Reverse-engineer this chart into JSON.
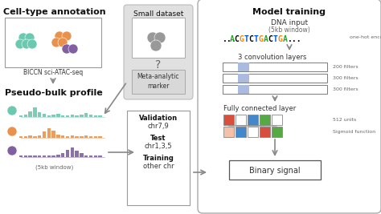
{
  "bg_color": "#f5f5f5",
  "cell_teal": "#6dc8b0",
  "cell_orange": "#e8924e",
  "cell_purple": "#8060a0",
  "cell_gray": "#999999",
  "bar_teal": "#6dc8b0",
  "bar_orange": "#e8924e",
  "bar_purple": "#8060a0",
  "dna_chars": [
    "...",
    "A",
    "C",
    "G",
    "T",
    "C",
    "T",
    "G",
    "A",
    "C",
    "T",
    "G",
    "A",
    "..."
  ],
  "dna_colors": [
    "#000000",
    "#22aa22",
    "#000000",
    "#ff8800",
    "#0055cc",
    "#000000",
    "#0055cc",
    "#ff8800",
    "#22aa22",
    "#000000",
    "#0055cc",
    "#ff8800",
    "#22aa22",
    "#000000"
  ],
  "filter_labels": [
    "200 filters",
    "300 filters",
    "300 filters"
  ],
  "fc_colors_r1": [
    "#d94f3d",
    "#ffffff",
    "#4488cc",
    "#55aa44",
    "#ffffff"
  ],
  "fc_colors_r2": [
    "#f4c0a8",
    "#4488cc",
    "#ffffff",
    "#d94f3d",
    "#55aa44"
  ],
  "arrow_color": "#888888",
  "text_dark": "#111111",
  "text_mid": "#333333",
  "text_gray": "#666666",
  "bar_heights_teal": [
    2,
    3,
    8,
    13,
    7,
    4,
    2,
    3,
    4,
    2,
    2,
    3,
    2,
    3,
    5,
    3,
    2,
    2
  ],
  "bar_heights_orange": [
    2,
    2,
    3,
    2,
    4,
    9,
    14,
    11,
    5,
    3,
    2,
    3,
    2,
    2,
    3,
    2,
    2,
    2
  ],
  "bar_heights_purple": [
    2,
    2,
    2,
    3,
    2,
    3,
    2,
    2,
    4,
    6,
    11,
    15,
    10,
    6,
    3,
    2,
    2,
    2
  ]
}
